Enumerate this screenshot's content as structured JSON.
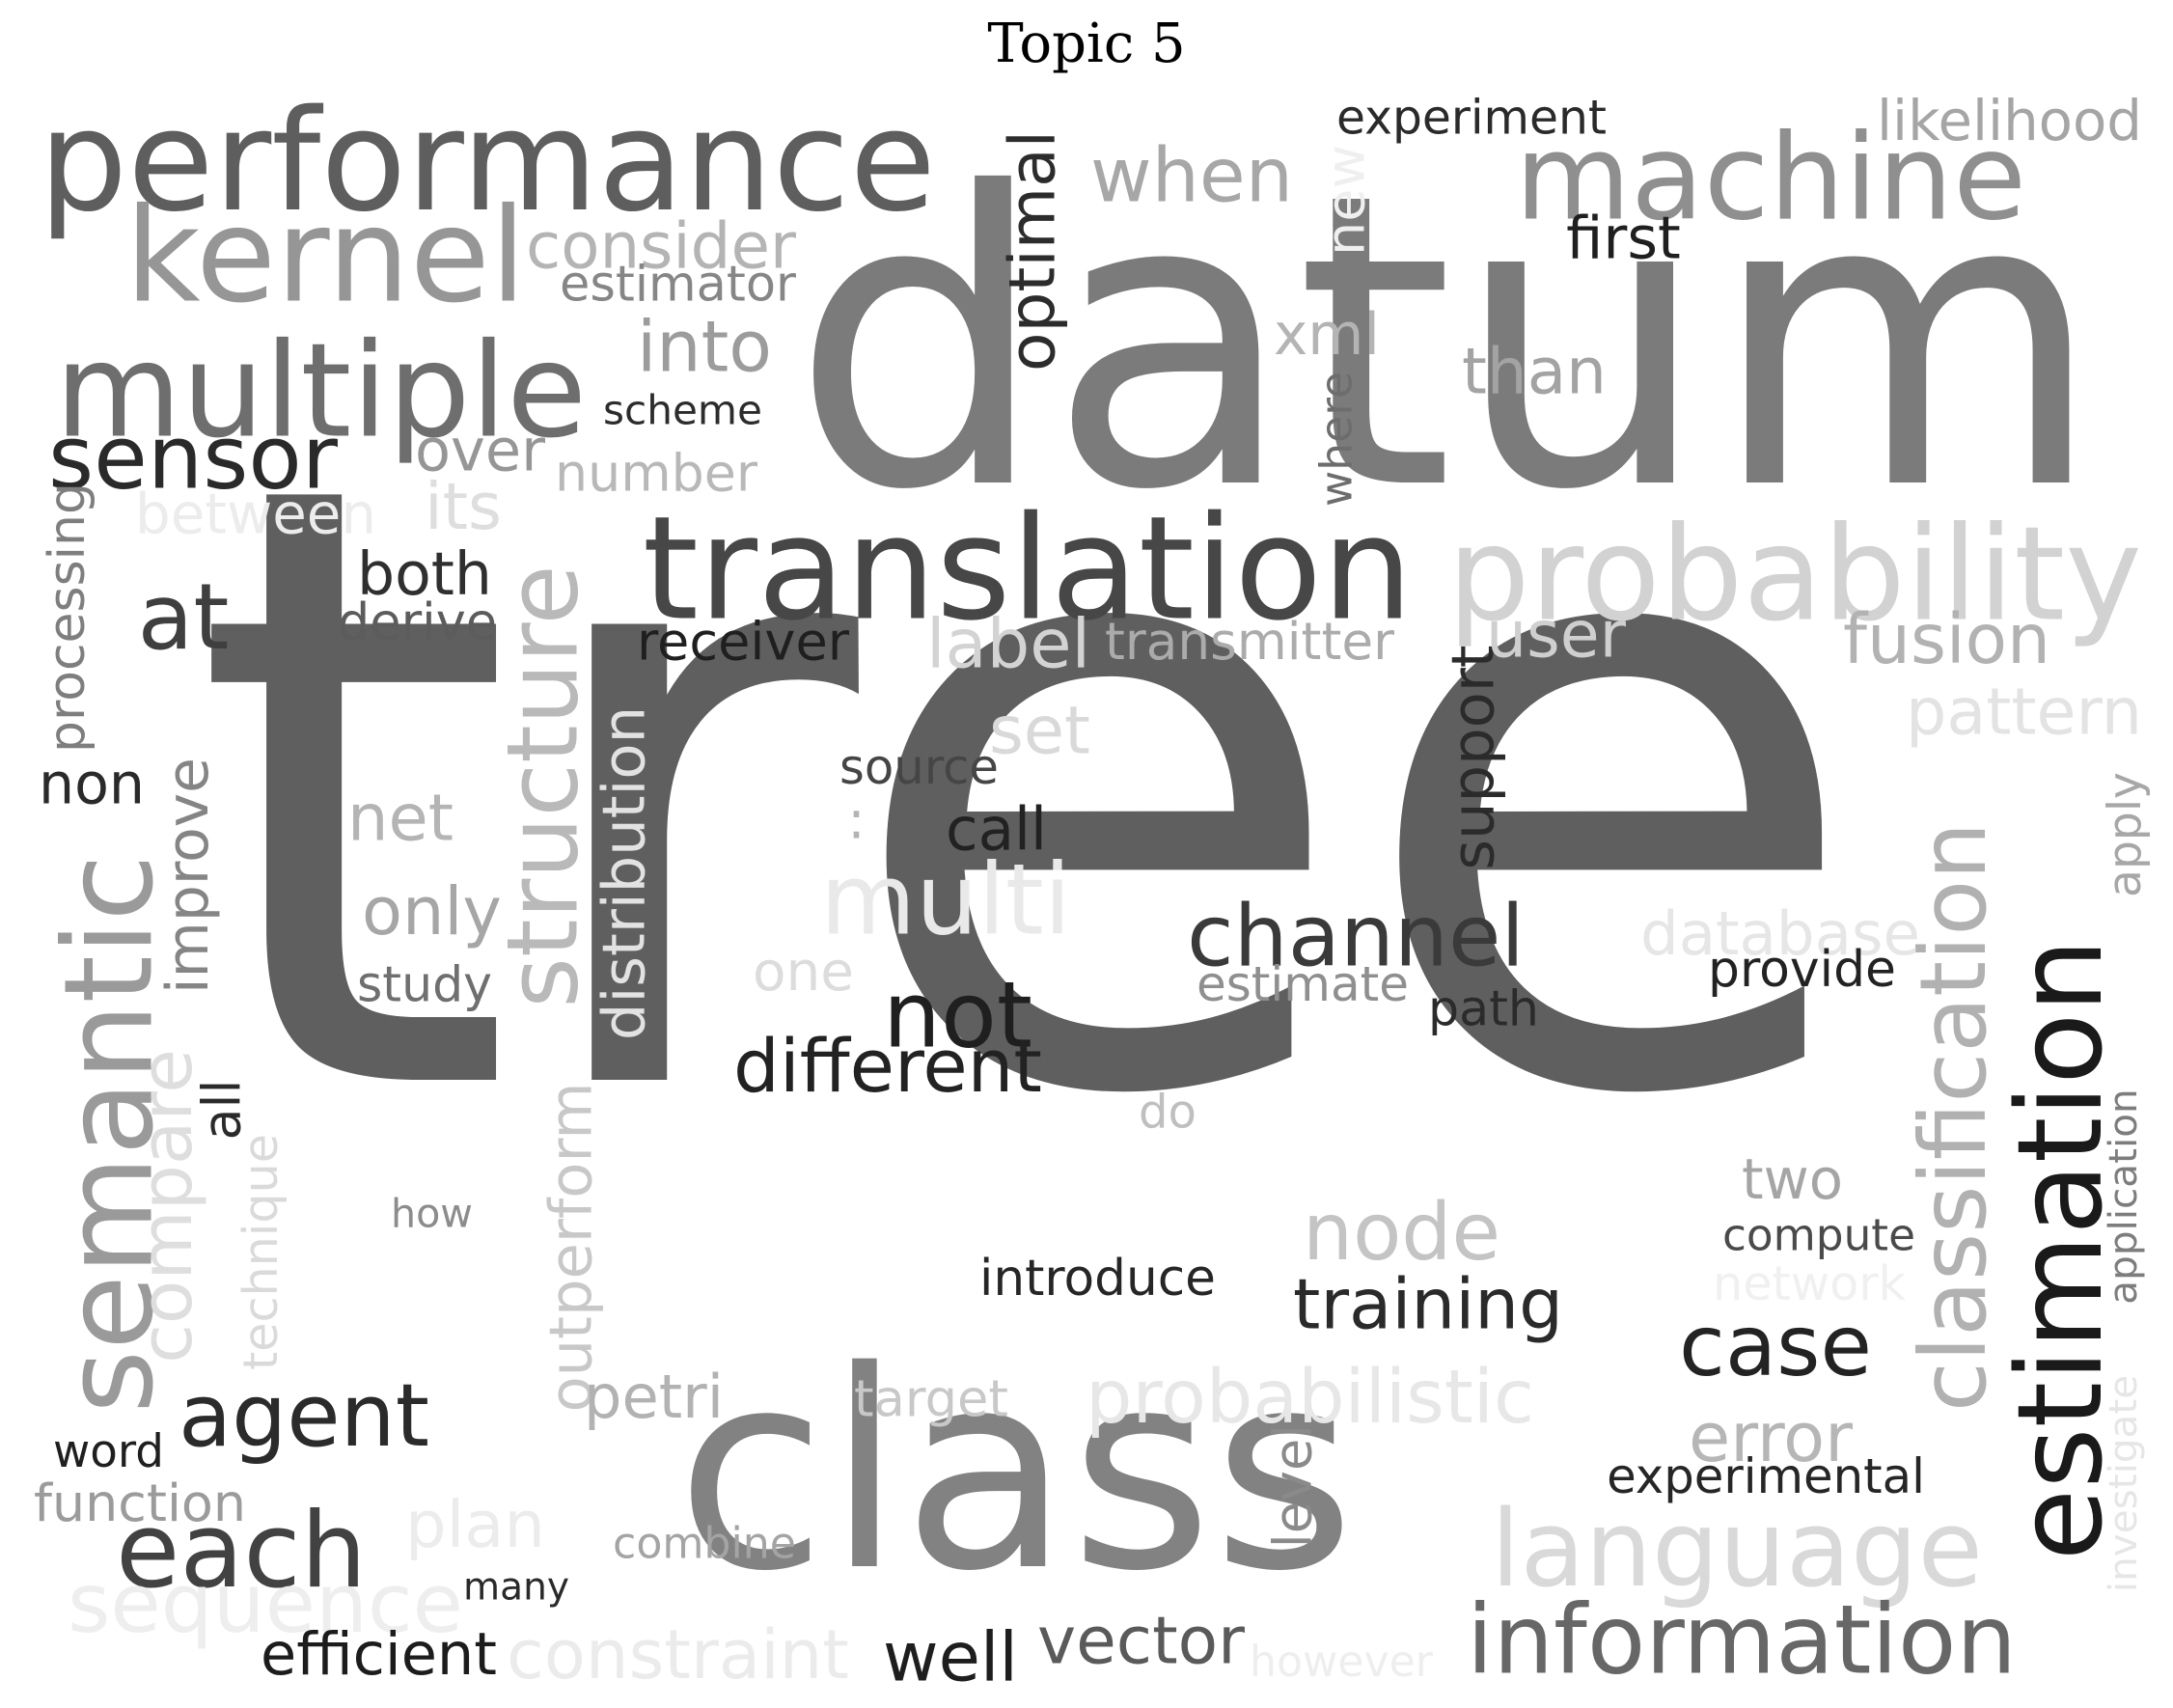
{
  "title": "Topic 5",
  "words": [
    {
      "text": "tree",
      "color": "#5f5f5f"
    },
    {
      "text": "datum",
      "color": "#7b7b7b"
    },
    {
      "text": "class",
      "color": "#828282"
    },
    {
      "text": "performance",
      "color": "#5e5e5e"
    },
    {
      "text": "machine",
      "color": "#8f8f8f"
    },
    {
      "text": "translation",
      "color": "#474747"
    },
    {
      "text": "probability",
      "color": "#d2d2d2"
    },
    {
      "text": "multiple",
      "color": "#6e6e6e"
    },
    {
      "text": "kernel",
      "color": "#969696"
    },
    {
      "text": "estimation",
      "color": "#1a1a1a"
    },
    {
      "text": "classification",
      "color": "#b1b1b1"
    },
    {
      "text": "semantic",
      "color": "#9a9a9a"
    },
    {
      "text": "structure",
      "color": "#b9b9b9"
    },
    {
      "text": "language",
      "color": "#d9d9d9"
    },
    {
      "text": "information",
      "color": "#676767"
    },
    {
      "text": "channel",
      "color": "#3a3a3a"
    },
    {
      "text": "each",
      "color": "#424242"
    },
    {
      "text": "agent",
      "color": "#2b2b2b"
    },
    {
      "text": "sensor",
      "color": "#2a2a2a"
    },
    {
      "text": "when",
      "color": "#a7a7a7"
    },
    {
      "text": "node",
      "color": "#c4c4c4"
    },
    {
      "text": "case",
      "color": "#232323"
    },
    {
      "text": "not",
      "color": "#1f1f1f"
    },
    {
      "text": "multi",
      "color": "#e9e9e9"
    },
    {
      "text": "sequence",
      "color": "#eeeeee"
    },
    {
      "text": "at",
      "color": "#3f3f3f"
    },
    {
      "text": "compare",
      "color": "#dedede"
    },
    {
      "text": "consider",
      "color": "#b4b4b4"
    },
    {
      "text": "into",
      "color": "#9c9c9c"
    },
    {
      "text": "than",
      "color": "#a3a3a3"
    },
    {
      "text": "optimal",
      "color": "#2c2c2c"
    },
    {
      "text": "probabilistic",
      "color": "#e7e7e7"
    },
    {
      "text": "distribution",
      "color": "#e2e2e2"
    },
    {
      "text": "outperform",
      "color": "#c8c8c8"
    },
    {
      "text": "fusion",
      "color": "#b2b2b2"
    },
    {
      "text": "training",
      "color": "#2a2a2a"
    },
    {
      "text": "different",
      "color": "#222222"
    },
    {
      "text": "support",
      "color": "#2b2b2b"
    },
    {
      "text": "error",
      "color": "#b6b6b6"
    },
    {
      "text": "both",
      "color": "#2f2f2f"
    },
    {
      "text": "over",
      "color": "#969696"
    },
    {
      "text": "number",
      "color": "#b8b8b8"
    },
    {
      "text": "user",
      "color": "#cfcfcf"
    },
    {
      "text": "pattern",
      "color": "#e3e3e3"
    },
    {
      "text": "label",
      "color": "#d3d3d3"
    },
    {
      "text": "constraint",
      "color": "#ebebeb"
    },
    {
      "text": "vector",
      "color": "#5a5a5a"
    },
    {
      "text": "well",
      "color": "#1e1e1e"
    },
    {
      "text": "database",
      "color": "#e6e6e6"
    },
    {
      "text": "non",
      "color": "#2a2a2a"
    },
    {
      "text": "improve",
      "color": "#858585"
    },
    {
      "text": "net",
      "color": "#b4b4b4"
    },
    {
      "text": "only",
      "color": "#a6a6a6"
    },
    {
      "text": "between",
      "color": "#ececec"
    },
    {
      "text": "xml",
      "color": "#b4b4b4"
    },
    {
      "text": "plan",
      "color": "#ececec"
    },
    {
      "text": "set",
      "color": "#d9d9d9"
    },
    {
      "text": "two",
      "color": "#a5a5a5"
    },
    {
      "text": "experiment",
      "color": "#2a2a2a"
    },
    {
      "text": "likelihood",
      "color": "#a5a5a5"
    },
    {
      "text": "estimator",
      "color": "#868686"
    },
    {
      "text": "scheme",
      "color": "#2c2c2c"
    },
    {
      "text": "processing",
      "color": "#7e7e7e"
    },
    {
      "text": "derive",
      "color": "#5c5c5c"
    },
    {
      "text": "receiver",
      "color": "#1f1f1f"
    },
    {
      "text": "transmitter",
      "color": "#ababab"
    },
    {
      "text": "source",
      "color": "#454545"
    },
    {
      "text": "call",
      "color": "#222222"
    },
    {
      "text": ":",
      "color": "#b4b4b4"
    },
    {
      "text": "estimate",
      "color": "#8f8f8f"
    },
    {
      "text": "path",
      "color": "#2b2b2b"
    },
    {
      "text": "provide",
      "color": "#222222"
    },
    {
      "text": "one",
      "color": "#dcdcdc"
    },
    {
      "text": "study",
      "color": "#6f6f6f"
    },
    {
      "text": "all",
      "color": "#2a2a2a"
    },
    {
      "text": "do",
      "color": "#bfbfbf"
    },
    {
      "text": "how",
      "color": "#8c8c8c"
    },
    {
      "text": "introduce",
      "color": "#262626"
    },
    {
      "text": "compute",
      "color": "#4a4a4a"
    },
    {
      "text": "network",
      "color": "#f0f0f0"
    },
    {
      "text": "technique",
      "color": "#dadada"
    },
    {
      "text": "petri",
      "color": "#b2b2b2"
    },
    {
      "text": "target",
      "color": "#c8c8c8"
    },
    {
      "text": "word",
      "color": "#1f1f1f"
    },
    {
      "text": "function",
      "color": "#9b9b9b"
    },
    {
      "text": "experimental",
      "color": "#262626"
    },
    {
      "text": "application",
      "color": "#7d7d7d"
    },
    {
      "text": "apply",
      "color": "#a7a7a7"
    },
    {
      "text": "investigate",
      "color": "#e6e6e6"
    },
    {
      "text": "level",
      "color": "#8a8a8a"
    },
    {
      "text": "combine",
      "color": "#a4a4a4"
    },
    {
      "text": "many",
      "color": "#2a2a2a"
    },
    {
      "text": "efficient",
      "color": "#1c1c1c"
    },
    {
      "text": "however",
      "color": "#eeeeee"
    },
    {
      "text": "first",
      "color": "#1f1f1f"
    },
    {
      "text": "new",
      "color": "#efefef"
    },
    {
      "text": "where",
      "color": "#6d6d6d"
    },
    {
      "text": "its",
      "color": "#dedede"
    }
  ]
}
